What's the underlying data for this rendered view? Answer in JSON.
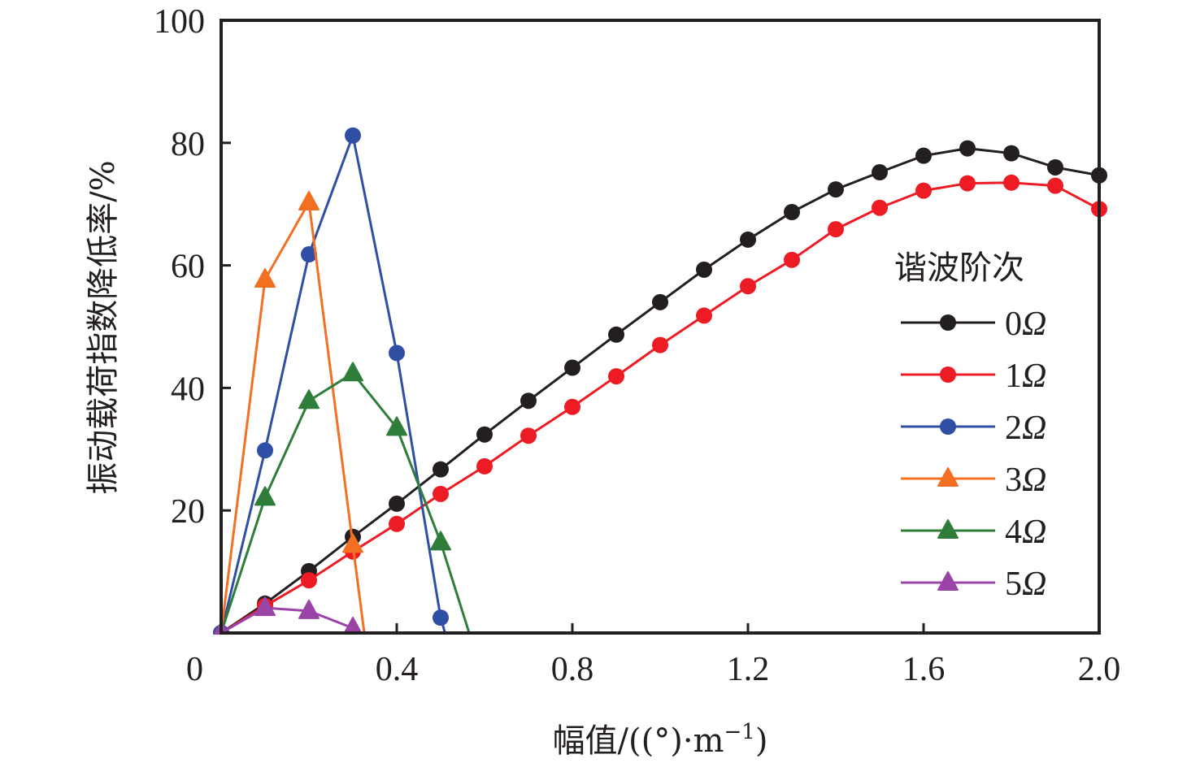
{
  "chart_data": {
    "type": "line",
    "title": "",
    "xlabel": "幅值/((°)·m⁻¹)",
    "xlabel_parts": {
      "main": "幅值/((°)·m",
      "sup": "−1",
      "tail": ")"
    },
    "ylabel": "振动载荷指数降低率/%",
    "xlim": [
      0,
      2.0
    ],
    "ylim": [
      0,
      100
    ],
    "x_ticks": [
      0,
      0.4,
      0.8,
      1.2,
      1.6,
      2.0
    ],
    "x_tick_labels": [
      "0",
      "0.4",
      "0.8",
      "1.2",
      "1.6",
      "2.0"
    ],
    "y_ticks": [
      20,
      40,
      60,
      80,
      100
    ],
    "y_tick_labels": [
      "20",
      "40",
      "60",
      "80",
      "100"
    ],
    "grid": false,
    "legend": {
      "title": "谐波阶次",
      "position": "right"
    },
    "series": [
      {
        "name": "0Ω",
        "num": "0",
        "color": "#231f20",
        "marker": "circle",
        "x": [
          0,
          0.1,
          0.2,
          0.3,
          0.4,
          0.5,
          0.6,
          0.7,
          0.8,
          0.9,
          1.0,
          1.1,
          1.2,
          1.3,
          1.4,
          1.5,
          1.6,
          1.7,
          1.8,
          1.9,
          2.0
        ],
        "y": [
          0,
          4.8,
          10.1,
          15.7,
          21.1,
          26.7,
          32.4,
          37.9,
          43.3,
          48.7,
          54.0,
          59.3,
          64.2,
          68.7,
          72.4,
          75.2,
          77.9,
          79.1,
          78.3,
          76.0,
          74.7
        ]
      },
      {
        "name": "1Ω",
        "num": "1",
        "color": "#ed1c24",
        "marker": "circle",
        "x": [
          0,
          0.1,
          0.2,
          0.3,
          0.4,
          0.5,
          0.6,
          0.7,
          0.8,
          0.9,
          1.0,
          1.1,
          1.2,
          1.3,
          1.4,
          1.5,
          1.6,
          1.7,
          1.8,
          1.9,
          2.0
        ],
        "y": [
          0,
          4.4,
          8.6,
          13.3,
          17.8,
          22.7,
          27.2,
          32.2,
          36.9,
          41.9,
          47.0,
          51.8,
          56.6,
          60.9,
          65.9,
          69.4,
          72.2,
          73.4,
          73.5,
          73.0,
          69.2
        ]
      },
      {
        "name": "2Ω",
        "num": "2",
        "color": "#2e4fa3",
        "marker": "circle",
        "x": [
          0,
          0.1,
          0.2,
          0.3,
          0.4,
          0.5
        ],
        "y": [
          0,
          29.8,
          61.8,
          81.2,
          45.7,
          2.5
        ],
        "line_end": [
          0.51,
          0
        ]
      },
      {
        "name": "3Ω",
        "num": "3",
        "color": "#f36f21",
        "marker": "triangle",
        "x": [
          0,
          0.1,
          0.2,
          0.3
        ],
        "y": [
          0,
          57.7,
          70.3,
          14.4
        ],
        "line_end": [
          0.326,
          0
        ]
      },
      {
        "name": "4Ω",
        "num": "4",
        "color": "#2e7d3a",
        "marker": "triangle",
        "x": [
          0,
          0.1,
          0.2,
          0.3,
          0.4,
          0.5
        ],
        "y": [
          0,
          22.1,
          37.9,
          42.4,
          33.5,
          14.8
        ],
        "line_end": [
          0.565,
          0
        ]
      },
      {
        "name": "5Ω",
        "num": "5",
        "color": "#9b44a8",
        "marker": "triangle",
        "x": [
          0,
          0.1,
          0.2,
          0.3
        ],
        "y": [
          0,
          4.1,
          3.6,
          0.8
        ]
      }
    ]
  }
}
